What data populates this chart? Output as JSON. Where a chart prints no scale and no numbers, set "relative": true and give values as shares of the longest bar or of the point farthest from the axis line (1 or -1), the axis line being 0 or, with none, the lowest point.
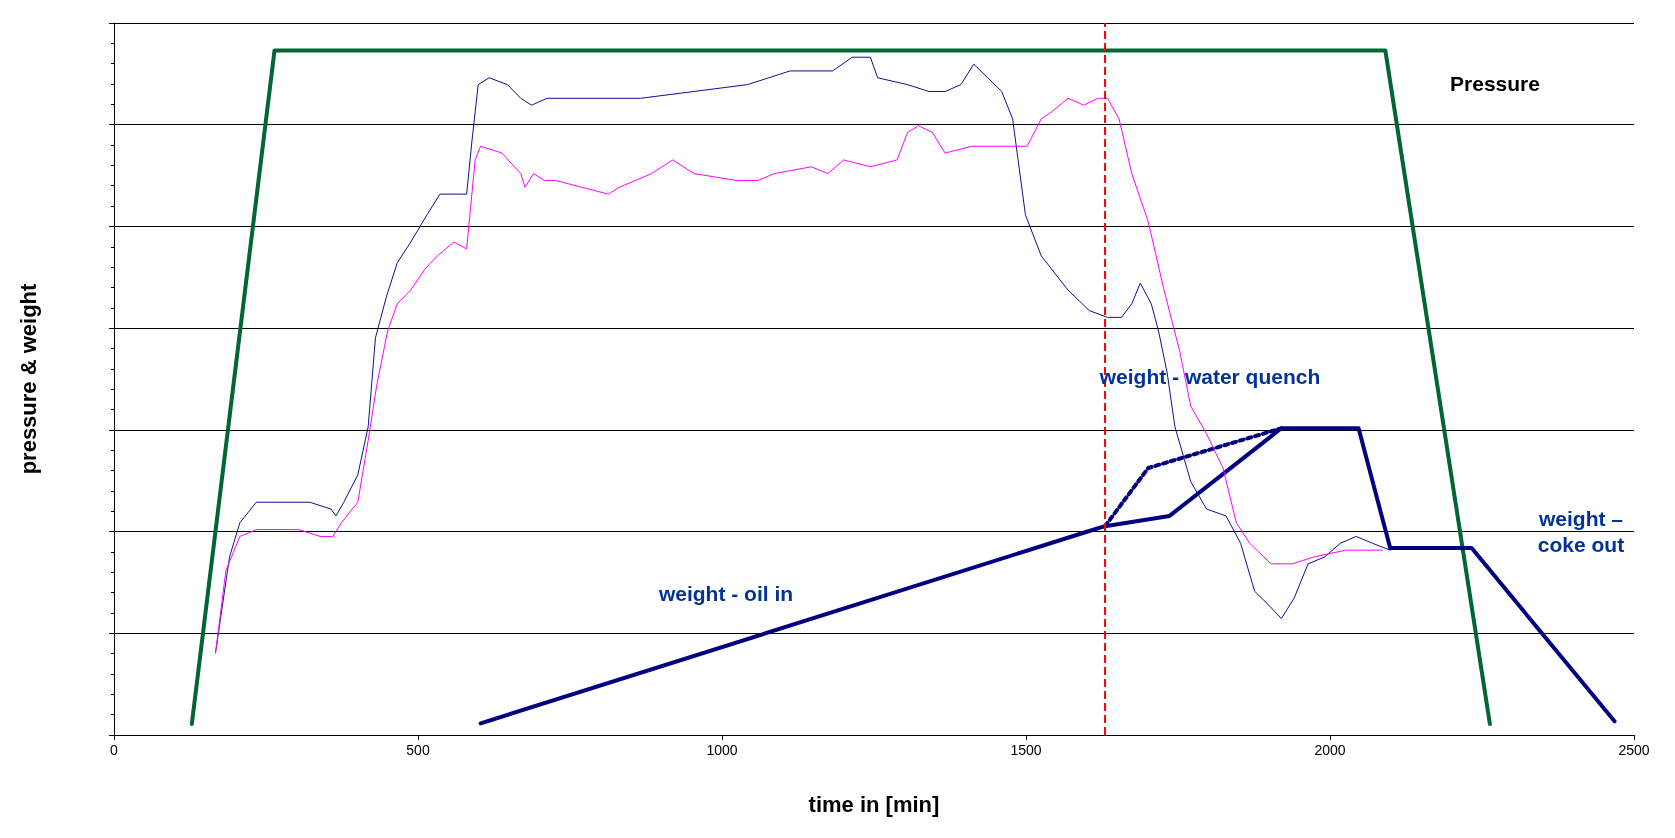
{
  "chart_data": {
    "type": "line",
    "relative": true,
    "xlabel": "time in [min]",
    "ylabel": "pressure & weight",
    "xlim": [
      0,
      2500
    ],
    "xticks": [
      0,
      500,
      1000,
      1500,
      2000,
      2500
    ],
    "grid": "y",
    "tick_labels": "x",
    "marker": "none",
    "line_style": "solid",
    "series": [
      {
        "color": "#006633",
        "x": [
          128,
          264,
          2091,
          2263
        ],
        "values": [
          0.016,
          1,
          1,
          0.016
        ]
      },
      {
        "color": "#000080",
        "x": [
          603,
          1604,
          1630,
          1736,
          1920,
          2047,
          2099,
          2233,
          2468
        ],
        "values": [
          0.017,
          0.298,
          0.305,
          0.32,
          0.448,
          0.448,
          0.273,
          0.273,
          0.02
        ]
      },
      {
        "color": "#000080",
        "line_style": "dotted",
        "x": [
          1630,
          1701,
          1920
        ],
        "values": [
          0.305,
          0.39,
          0.448
        ]
      },
      {
        "color": "#101090",
        "x": [
          167,
          190,
          207,
          234,
          260,
          322,
          357,
          365,
          378,
          401,
          418,
          430,
          448,
          466,
          488,
          515,
          536,
          559,
          580,
          589,
          599,
          617,
          647,
          669,
          687,
          712,
          796,
          866,
          954,
          1042,
          1112,
          1182,
          1214,
          1244,
          1256,
          1305,
          1340,
          1367,
          1393,
          1414,
          1437,
          1460,
          1478,
          1499,
          1525,
          1569,
          1604,
          1634,
          1657,
          1674,
          1688,
          1706,
          1718,
          1732,
          1745,
          1771,
          1797,
          1829,
          1853,
          1876,
          1899,
          1920,
          1941,
          1964,
          1991,
          2017,
          2043,
          2070,
          2099
        ],
        "values": [
          0.12,
          0.26,
          0.31,
          0.34,
          0.34,
          0.34,
          0.33,
          0.32,
          0.34,
          0.38,
          0.45,
          0.58,
          0.64,
          0.69,
          0.72,
          0.76,
          0.79,
          0.79,
          0.79,
          0.87,
          0.95,
          0.96,
          0.95,
          0.93,
          0.92,
          0.93,
          0.93,
          0.93,
          0.94,
          0.95,
          0.97,
          0.97,
          0.99,
          0.99,
          0.96,
          0.95,
          0.94,
          0.94,
          0.95,
          0.98,
          0.96,
          0.94,
          0.9,
          0.76,
          0.7,
          0.65,
          0.62,
          0.61,
          0.61,
          0.63,
          0.66,
          0.63,
          0.59,
          0.53,
          0.45,
          0.37,
          0.33,
          0.32,
          0.28,
          0.21,
          0.19,
          0.17,
          0.2,
          0.25,
          0.26,
          0.28,
          0.29,
          0.28,
          0.27
        ]
      },
      {
        "color": "#ff00ff",
        "x": [
          167,
          184,
          207,
          234,
          304,
          339,
          360,
          374,
          401,
          418,
          432,
          450,
          466,
          488,
          511,
          532,
          559,
          580,
          594,
          603,
          638,
          669,
          676,
          690,
          708,
          726,
          813,
          831,
          884,
          919,
          954,
          1024,
          1059,
          1086,
          1147,
          1174,
          1200,
          1244,
          1288,
          1305,
          1323,
          1346,
          1367,
          1411,
          1463,
          1490,
          1502,
          1525,
          1542,
          1569,
          1595,
          1618,
          1634,
          1653,
          1674,
          1701,
          1727,
          1753,
          1771,
          1797,
          1824,
          1846,
          1868,
          1903,
          1938,
          1973,
          2026,
          2086
        ],
        "values": [
          0.12,
          0.24,
          0.29,
          0.3,
          0.3,
          0.29,
          0.29,
          0.31,
          0.34,
          0.43,
          0.51,
          0.59,
          0.63,
          0.65,
          0.68,
          0.7,
          0.72,
          0.71,
          0.84,
          0.86,
          0.85,
          0.82,
          0.8,
          0.82,
          0.81,
          0.81,
          0.79,
          0.8,
          0.82,
          0.84,
          0.82,
          0.81,
          0.81,
          0.82,
          0.83,
          0.82,
          0.84,
          0.83,
          0.84,
          0.88,
          0.89,
          0.88,
          0.85,
          0.86,
          0.86,
          0.86,
          0.86,
          0.9,
          0.91,
          0.93,
          0.92,
          0.93,
          0.93,
          0.9,
          0.82,
          0.75,
          0.65,
          0.56,
          0.48,
          0.44,
          0.39,
          0.31,
          0.28,
          0.25,
          0.25,
          0.26,
          0.27,
          0.27
        ]
      }
    ],
    "ref_lines": [
      {
        "axis": "x",
        "value": 1630,
        "color": "#ff0000",
        "line_style": "dashed"
      }
    ],
    "annotations": [
      "Pressure",
      "weight - water quench",
      "weight - oil in",
      "weight –\ncoke out"
    ]
  }
}
